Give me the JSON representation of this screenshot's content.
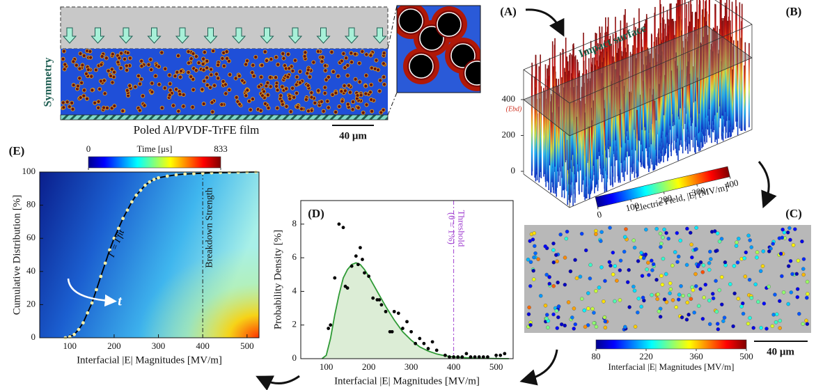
{
  "panels": {
    "A": {
      "label": "(A)",
      "symmetry": "Symmetry",
      "caption": "Poled Al/PVDF-TrFE film",
      "scale_bar": "40 μm"
    },
    "B": {
      "label": "(B)",
      "surface": "Impact surface",
      "ebd": "(Ebd)",
      "zlim": [
        0,
        400
      ],
      "zticks": [
        0,
        200,
        400
      ],
      "colorbar": {
        "title": "Electric Field, |E|  [MV/m]",
        "lim": [
          0,
          400
        ],
        "ticks": [
          0,
          100,
          200,
          300,
          400
        ]
      }
    },
    "C": {
      "label": "(C)",
      "scale_bar": "40 μm",
      "colorbar": {
        "title": "Interfacial |E| Magnitudes  [MV/m]",
        "lim": [
          80,
          500
        ],
        "ticks": [
          80,
          220,
          360,
          500
        ]
      }
    }
  },
  "chart_data": [
    {
      "type": "scatter",
      "label": "(D)",
      "xlabel": "Interfacial |E| Magnitudes [MV/m]",
      "ylabel": "Probability Density  [%]",
      "xlim": [
        40,
        540
      ],
      "ylim": [
        0,
        9.4
      ],
      "xticks": [
        100,
        200,
        300,
        400,
        500
      ],
      "yticks": [
        0,
        2,
        4,
        6,
        8
      ],
      "threshold": {
        "value": 400,
        "label": "Threshold",
        "sublabel": "(θ = 1%)",
        "color": "#a040d0"
      },
      "series": [
        {
          "type": "line",
          "color": "#2e9a35",
          "fill": "#dcedd6",
          "x": [
            90,
            100,
            110,
            120,
            130,
            140,
            150,
            160,
            170,
            180,
            190,
            200,
            220,
            240,
            260,
            280,
            300,
            320,
            340,
            360,
            380,
            400,
            450,
            500,
            530
          ],
          "values": [
            0,
            0.2,
            1.2,
            2.6,
            3.8,
            4.8,
            5.3,
            5.6,
            5.7,
            5.6,
            5.3,
            4.9,
            4.0,
            3.1,
            2.3,
            1.6,
            1.1,
            0.7,
            0.45,
            0.28,
            0.17,
            0.1,
            0.03,
            0.01,
            0
          ]
        },
        {
          "type": "scatter",
          "color": "#000000",
          "x": [
            105,
            110,
            120,
            130,
            140,
            145,
            150,
            160,
            170,
            175,
            180,
            185,
            190,
            200,
            210,
            220,
            225,
            230,
            240,
            250,
            255,
            260,
            270,
            280,
            290,
            300,
            310,
            320,
            330,
            340,
            350,
            360,
            380,
            390,
            400,
            410,
            420,
            430,
            440,
            450,
            460,
            470,
            480,
            500,
            510,
            520
          ],
          "values": [
            1.8,
            2.0,
            4.8,
            8.0,
            7.8,
            4.3,
            4.2,
            5.5,
            6.1,
            5.6,
            6.6,
            5.9,
            5.1,
            4.9,
            3.6,
            3.5,
            3.5,
            3.2,
            2.8,
            1.6,
            1.6,
            2.8,
            2.7,
            1.8,
            2.2,
            1.6,
            0.9,
            1.2,
            0.9,
            0.6,
            1.0,
            0.5,
            0.2,
            0.1,
            0.1,
            0.1,
            0.1,
            0.3,
            0.1,
            0.1,
            0.1,
            0.1,
            0.1,
            0.2,
            0.2,
            0.3
          ]
        }
      ]
    },
    {
      "type": "scatter",
      "label": "(E)",
      "xlabel": "Interfacial |E| Magnitudes [MV/m]",
      "ylabel": "Cumulative Distribution  [%]",
      "xlim": [
        32,
        527
      ],
      "ylim": [
        0,
        100
      ],
      "xticks": [
        100,
        200,
        300,
        400,
        500
      ],
      "yticks": [
        0,
        20,
        40,
        60,
        80,
        100
      ],
      "breakdown": {
        "value": 400,
        "label": "Breakdown Strength"
      },
      "curve_label": "Γ = Γfit",
      "arrow_label": "t",
      "colorbar": {
        "title": "Time [μs]",
        "lim": [
          0,
          833
        ],
        "ticks": [
          0,
          833
        ]
      },
      "series": [
        {
          "type": "line",
          "color": "#000000",
          "x": [
            90,
            100,
            110,
            120,
            130,
            140,
            150,
            160,
            170,
            180,
            190,
            200,
            210,
            220,
            230,
            240,
            250,
            260,
            270,
            280,
            290,
            300,
            320,
            340,
            360,
            380,
            400,
            420,
            440,
            460,
            480,
            500,
            520
          ],
          "values": [
            0,
            0.5,
            2,
            5,
            9,
            15,
            21,
            29,
            37,
            45,
            53,
            60,
            66,
            72,
            77,
            82,
            86,
            89,
            92,
            94,
            95.5,
            96.5,
            97.5,
            98.3,
            98.8,
            99,
            99.3,
            99.5,
            99.6,
            99.7,
            99.8,
            99.9,
            100
          ]
        },
        {
          "type": "scatter",
          "color": "#f6f0a8",
          "x": [
            90,
            100,
            110,
            120,
            130,
            140,
            150,
            160,
            170,
            180,
            190,
            200,
            210,
            220,
            230,
            240,
            250,
            260,
            270,
            280,
            290,
            300,
            320,
            340,
            360,
            380,
            400,
            420,
            440,
            460,
            480,
            500,
            520
          ],
          "values": [
            0,
            0.5,
            2,
            5,
            9,
            15,
            21,
            29,
            37,
            45,
            53,
            60,
            66,
            72,
            77,
            82,
            86,
            89,
            92,
            94,
            95.5,
            96.5,
            97.5,
            98.3,
            98.8,
            99,
            99.3,
            99.5,
            99.6,
            99.7,
            99.8,
            99.9,
            100
          ]
        }
      ]
    }
  ]
}
